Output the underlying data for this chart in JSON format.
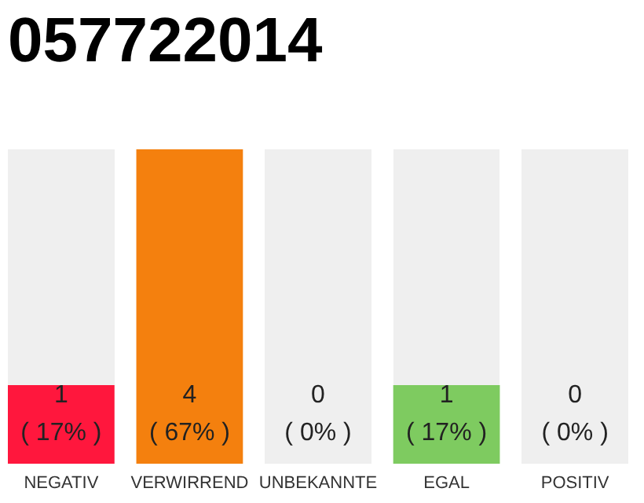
{
  "chart_data": {
    "type": "bar",
    "title": "057722014",
    "categories": [
      "NEGATIV",
      "VERWIRREND",
      "UNBEKANNTE",
      "EGAL",
      "POSITIV"
    ],
    "values": [
      1,
      4,
      0,
      1,
      0
    ],
    "colors": [
      "#ff173d",
      "#f4800e",
      "#b0b0b0",
      "#7ecb60",
      "#b0b0b0"
    ],
    "value_labels": [
      "1\n( 17% )",
      "4\n( 67% )",
      "0\n( 0% )",
      "1\n( 17% )",
      "0\n( 0% )"
    ],
    "tick_labels": "x"
  }
}
